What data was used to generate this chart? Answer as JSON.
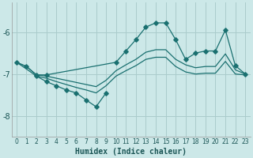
{
  "xlabel": "Humidex (Indice chaleur)",
  "background_color": "#cce8e8",
  "grid_color": "#aacccc",
  "line_color": "#1a7070",
  "xlim": [
    -0.5,
    23.5
  ],
  "ylim": [
    -8.5,
    -5.3
  ],
  "yticks": [
    -8,
    -7,
    -6
  ],
  "xticks": [
    0,
    1,
    2,
    3,
    4,
    5,
    6,
    7,
    8,
    9,
    10,
    11,
    12,
    13,
    14,
    15,
    16,
    17,
    18,
    19,
    20,
    21,
    22,
    23
  ],
  "line_dip_x": [
    2,
    3,
    4,
    5,
    6,
    7,
    8,
    9
  ],
  "line_dip_y": [
    -7.05,
    -7.18,
    -7.28,
    -7.38,
    -7.45,
    -7.62,
    -7.78,
    -7.45
  ],
  "line_peak_x": [
    0,
    1,
    2,
    3,
    10,
    11,
    12,
    13,
    14,
    15,
    16,
    17,
    18,
    19,
    20,
    21,
    22,
    23
  ],
  "line_peak_y": [
    -6.72,
    -6.82,
    -7.02,
    -7.02,
    -6.72,
    -6.45,
    -6.18,
    -5.88,
    -5.78,
    -5.78,
    -6.18,
    -6.65,
    -6.5,
    -6.45,
    -6.45,
    -5.95,
    -6.8,
    -7.0
  ],
  "line_upper_x": [
    0,
    1,
    2,
    3,
    4,
    5,
    6,
    7,
    8,
    9,
    10,
    11,
    12,
    13,
    14,
    15,
    16,
    17,
    18,
    19,
    20,
    21,
    22,
    23
  ],
  "line_upper_y": [
    -6.72,
    -6.82,
    -7.02,
    -7.05,
    -7.1,
    -7.15,
    -7.2,
    -7.25,
    -7.3,
    -7.15,
    -6.92,
    -6.78,
    -6.65,
    -6.48,
    -6.42,
    -6.42,
    -6.65,
    -6.78,
    -6.85,
    -6.82,
    -6.82,
    -6.52,
    -6.9,
    -7.0
  ],
  "line_lower_x": [
    0,
    1,
    2,
    3,
    4,
    5,
    6,
    7,
    8,
    9,
    10,
    11,
    12,
    13,
    14,
    15,
    16,
    17,
    18,
    19,
    20,
    21,
    22,
    23
  ],
  "line_lower_y": [
    -6.72,
    -6.88,
    -7.05,
    -7.1,
    -7.18,
    -7.25,
    -7.32,
    -7.38,
    -7.45,
    -7.28,
    -7.05,
    -6.92,
    -6.8,
    -6.65,
    -6.6,
    -6.6,
    -6.82,
    -6.95,
    -7.0,
    -6.98,
    -6.98,
    -6.7,
    -7.0,
    -7.02
  ]
}
